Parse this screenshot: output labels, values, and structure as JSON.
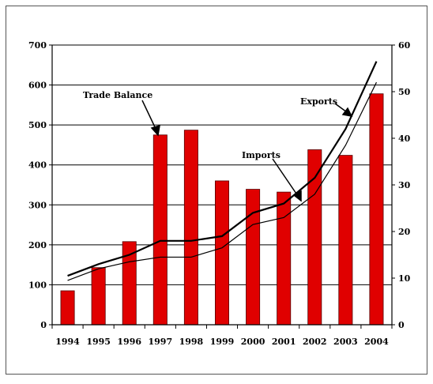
{
  "chart_data": {
    "type": "bar",
    "title": "",
    "xlabel": "",
    "ylabel": "",
    "categories": [
      "1994",
      "1995",
      "1996",
      "1997",
      "1998",
      "1999",
      "2000",
      "2001",
      "2002",
      "2003",
      "2004"
    ],
    "ylim_left": [
      0,
      700
    ],
    "yticks_left": [
      "0",
      "100",
      "200",
      "300",
      "400",
      "500",
      "600",
      "700"
    ],
    "ylim_right": [
      0,
      60
    ],
    "yticks_right": [
      "0",
      "10",
      "20",
      "30",
      "40",
      "50",
      "60"
    ],
    "grid": true,
    "series": [
      {
        "name": "Trade Balance",
        "type": "bar",
        "axis": "left",
        "color": "#e00000",
        "values": [
          85,
          143,
          208,
          475,
          487,
          360,
          339,
          332,
          438,
          424,
          578
        ]
      },
      {
        "name": "Exports",
        "type": "line",
        "axis": "right",
        "color": "#000000",
        "values": [
          10.5,
          13,
          15,
          18,
          18,
          19,
          24,
          26,
          31.5,
          42,
          56.5
        ]
      },
      {
        "name": "Imports",
        "type": "line",
        "axis": "right",
        "color": "#000000",
        "values": [
          9.5,
          12,
          13.5,
          14.5,
          14.5,
          16.5,
          21.5,
          23,
          28,
          38.5,
          52
        ]
      }
    ],
    "annotations": [
      "Trade Balance",
      "Exports",
      "Imports"
    ]
  }
}
